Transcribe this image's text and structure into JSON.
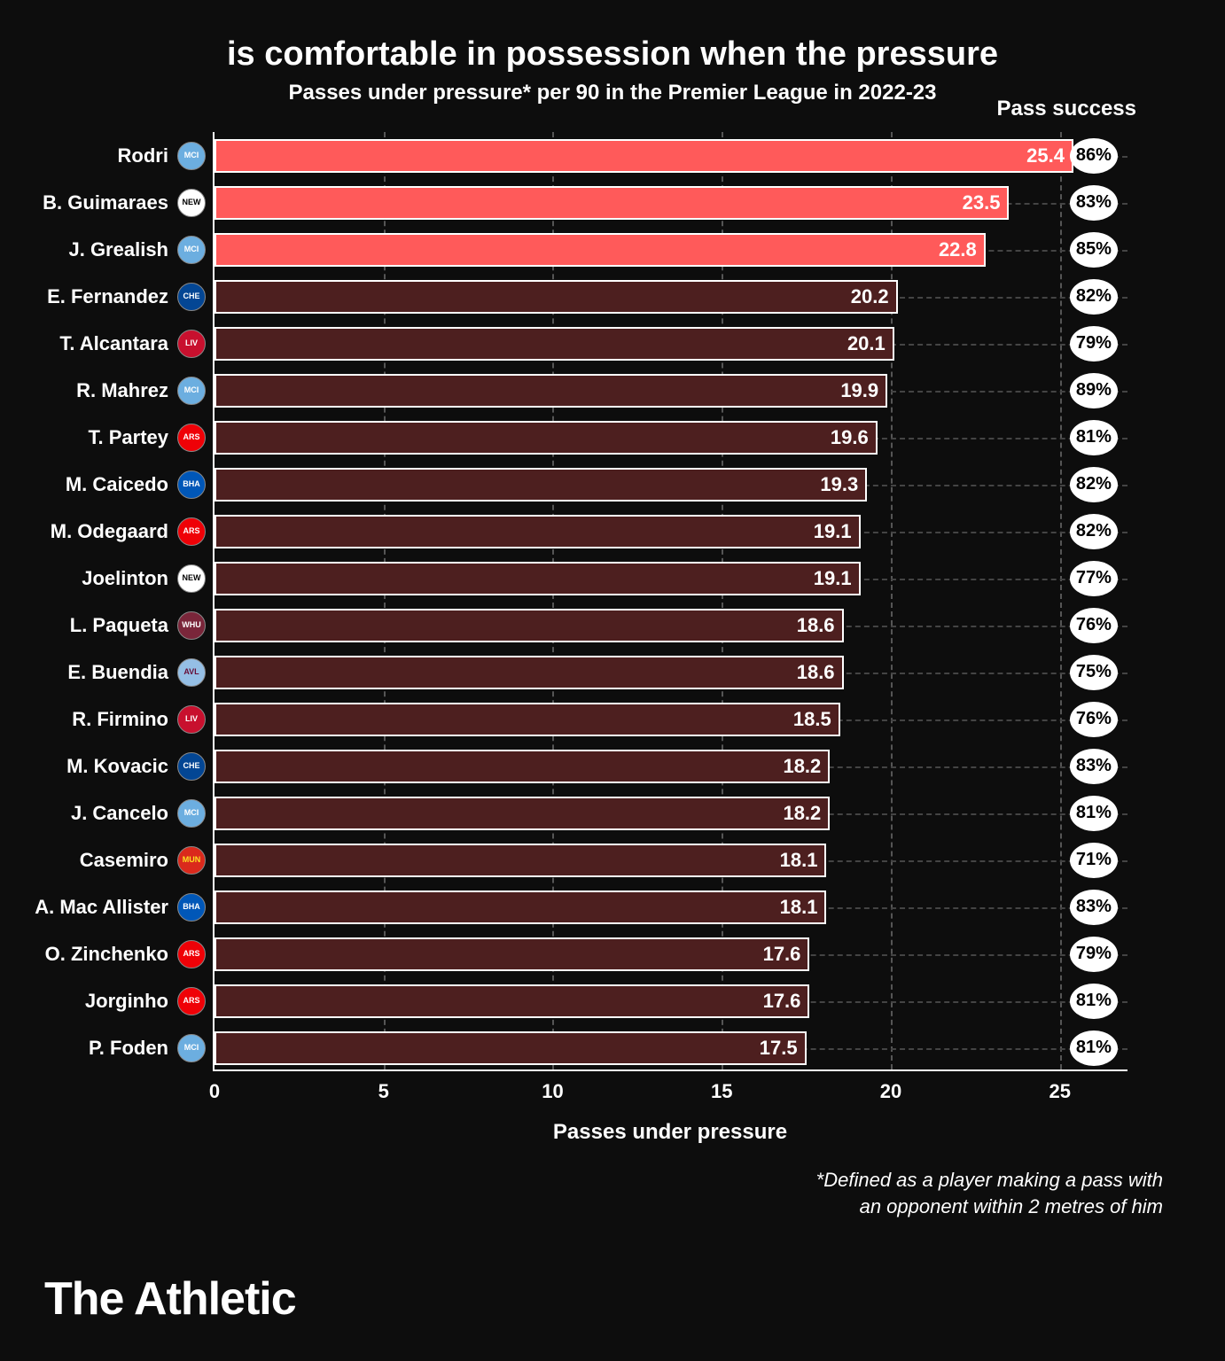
{
  "title": "is comfortable in possession when the pressure",
  "subtitle": "Passes under pressure* per 90 in the Premier League in 2022-23",
  "pass_success_header": "Pass success",
  "x_label": "Passes under pressure",
  "footnote_line1": "*Defined as a player making a pass with",
  "footnote_line2": "an opponent within 2 metres of him",
  "brand": "The Athletic",
  "chart": {
    "type": "bar",
    "xlim_max": 27,
    "xticks": [
      0,
      5,
      10,
      15,
      20,
      25
    ],
    "pill_x": 26,
    "bar_border": "#ffffff",
    "highlight_color": "#ff5a5a",
    "regular_color": "#4d1f1f",
    "grid_color": "#444444",
    "players": [
      {
        "name": "Rodri",
        "value": 25.4,
        "success": "86%",
        "highlight": true,
        "club": "MCI",
        "club_bg": "#6caee0",
        "club_fg": "#ffffff"
      },
      {
        "name": "B. Guimaraes",
        "value": 23.5,
        "success": "83%",
        "highlight": true,
        "club": "NEW",
        "club_bg": "#ffffff",
        "club_fg": "#000000"
      },
      {
        "name": "J. Grealish",
        "value": 22.8,
        "success": "85%",
        "highlight": true,
        "club": "MCI",
        "club_bg": "#6caee0",
        "club_fg": "#ffffff"
      },
      {
        "name": "E. Fernandez",
        "value": 20.2,
        "success": "82%",
        "highlight": false,
        "club": "CHE",
        "club_bg": "#034694",
        "club_fg": "#ffffff"
      },
      {
        "name": "T. Alcantara",
        "value": 20.1,
        "success": "79%",
        "highlight": false,
        "club": "LIV",
        "club_bg": "#c8102e",
        "club_fg": "#ffffff"
      },
      {
        "name": "R. Mahrez",
        "value": 19.9,
        "success": "89%",
        "highlight": false,
        "club": "MCI",
        "club_bg": "#6caee0",
        "club_fg": "#ffffff"
      },
      {
        "name": "T. Partey",
        "value": 19.6,
        "success": "81%",
        "highlight": false,
        "club": "ARS",
        "club_bg": "#ef0107",
        "club_fg": "#ffffff"
      },
      {
        "name": "M. Caicedo",
        "value": 19.3,
        "success": "82%",
        "highlight": false,
        "club": "BHA",
        "club_bg": "#0057b8",
        "club_fg": "#ffffff"
      },
      {
        "name": "M. Odegaard",
        "value": 19.1,
        "success": "82%",
        "highlight": false,
        "club": "ARS",
        "club_bg": "#ef0107",
        "club_fg": "#ffffff"
      },
      {
        "name": "Joelinton",
        "value": 19.1,
        "success": "77%",
        "highlight": false,
        "club": "NEW",
        "club_bg": "#ffffff",
        "club_fg": "#000000"
      },
      {
        "name": "L. Paqueta",
        "value": 18.6,
        "success": "76%",
        "highlight": false,
        "club": "WHU",
        "club_bg": "#7a263a",
        "club_fg": "#ffffff"
      },
      {
        "name": "E. Buendia",
        "value": 18.6,
        "success": "75%",
        "highlight": false,
        "club": "AVL",
        "club_bg": "#95bfe5",
        "club_fg": "#670e36"
      },
      {
        "name": "R. Firmino",
        "value": 18.5,
        "success": "76%",
        "highlight": false,
        "club": "LIV",
        "club_bg": "#c8102e",
        "club_fg": "#ffffff"
      },
      {
        "name": "M. Kovacic",
        "value": 18.2,
        "success": "83%",
        "highlight": false,
        "club": "CHE",
        "club_bg": "#034694",
        "club_fg": "#ffffff"
      },
      {
        "name": "J. Cancelo",
        "value": 18.2,
        "success": "81%",
        "highlight": false,
        "club": "MCI",
        "club_bg": "#6caee0",
        "club_fg": "#ffffff"
      },
      {
        "name": "Casemiro",
        "value": 18.1,
        "success": "71%",
        "highlight": false,
        "club": "MUN",
        "club_bg": "#da291c",
        "club_fg": "#fbe122"
      },
      {
        "name": "A. Mac Allister",
        "value": 18.1,
        "success": "83%",
        "highlight": false,
        "club": "BHA",
        "club_bg": "#0057b8",
        "club_fg": "#ffffff"
      },
      {
        "name": "O. Zinchenko",
        "value": 17.6,
        "success": "79%",
        "highlight": false,
        "club": "ARS",
        "club_bg": "#ef0107",
        "club_fg": "#ffffff"
      },
      {
        "name": "Jorginho",
        "value": 17.6,
        "success": "81%",
        "highlight": false,
        "club": "ARS",
        "club_bg": "#ef0107",
        "club_fg": "#ffffff"
      },
      {
        "name": "P. Foden",
        "value": 17.5,
        "success": "81%",
        "highlight": false,
        "club": "MCI",
        "club_bg": "#6caee0",
        "club_fg": "#ffffff"
      }
    ]
  }
}
